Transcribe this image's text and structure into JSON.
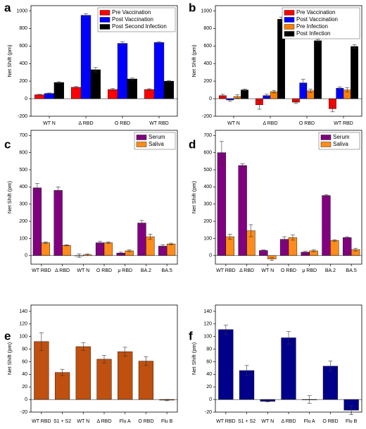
{
  "chart_data": [
    {
      "type": "bar",
      "panel_label": "a",
      "ylabel": "Net Shift (pm)",
      "legend": "upper right",
      "categories": [
        "WT N",
        "Δ RBD",
        "O RBD",
        "WT RBD"
      ],
      "series": [
        {
          "name": "Pre Vaccination",
          "color": "#ff0000",
          "values": [
            45,
            130,
            105,
            105
          ],
          "errors": [
            5,
            8,
            12,
            8
          ]
        },
        {
          "name": "Post Vaccination",
          "color": "#0000ff",
          "values": [
            60,
            950,
            630,
            640
          ],
          "errors": [
            5,
            20,
            20,
            10
          ]
        },
        {
          "name": "Post Second Infection",
          "color": "#000000",
          "values": [
            185,
            330,
            225,
            200
          ],
          "errors": [
            8,
            25,
            10,
            8
          ]
        }
      ],
      "ylim": [
        -200,
        1060
      ],
      "yticks": [
        -200,
        0,
        200,
        400,
        600,
        800,
        1000
      ]
    },
    {
      "type": "bar",
      "panel_label": "b",
      "ylabel": "Net Shift (pm)",
      "legend": "upper right",
      "categories": [
        "WT N",
        "Δ RBD",
        "O RBD",
        "WT RBD"
      ],
      "series": [
        {
          "name": "Pre Vaccination",
          "color": "#ff0000",
          "values": [
            35,
            -70,
            -40,
            -115
          ],
          "errors": [
            15,
            50,
            15,
            35
          ]
        },
        {
          "name": "Post Vaccination",
          "color": "#0000ff",
          "values": [
            -15,
            35,
            180,
            120
          ],
          "errors": [
            15,
            15,
            40,
            15
          ]
        },
        {
          "name": "Pre Infection",
          "color": "#ff8000",
          "values": [
            25,
            80,
            90,
            100
          ],
          "errors": [
            20,
            15,
            20,
            25
          ]
        },
        {
          "name": "Post Infection",
          "color": "#000000",
          "values": [
            100,
            905,
            660,
            595
          ],
          "errors": [
            10,
            25,
            15,
            20
          ]
        }
      ],
      "ylim": [
        -200,
        1060
      ],
      "yticks": [
        -200,
        0,
        200,
        400,
        600,
        800,
        1000
      ]
    },
    {
      "type": "bar",
      "panel_label": "c",
      "ylabel": "Net Shift (pm)",
      "legend": "upper right",
      "categories": [
        "WT RBD",
        "Δ RBD",
        "WT N",
        "O RBD",
        "μ RBD",
        "BA.2",
        "BA.5"
      ],
      "series": [
        {
          "name": "Serum",
          "color": "#800080",
          "values": [
            395,
            380,
            0,
            75,
            15,
            190,
            55
          ],
          "errors": [
            25,
            20,
            10,
            8,
            5,
            15,
            8
          ]
        },
        {
          "name": "Saliva",
          "color": "#ff8c1a",
          "values": [
            75,
            60,
            5,
            75,
            28,
            110,
            68
          ],
          "errors": [
            5,
            3,
            5,
            5,
            5,
            15,
            5
          ]
        }
      ],
      "ylim": [
        -50,
        730
      ],
      "yticks": [
        0,
        100,
        200,
        300,
        400,
        500,
        600,
        700
      ]
    },
    {
      "type": "bar",
      "panel_label": "d",
      "ylabel": "Net Shift (pm)",
      "legend": "upper right",
      "categories": [
        "WT RBD",
        "Δ RBD",
        "WT N",
        "O RBD",
        "μ RBD",
        "BA.2",
        "BA.5"
      ],
      "series": [
        {
          "name": "Serum",
          "color": "#800080",
          "values": [
            600,
            525,
            30,
            95,
            20,
            350,
            105
          ],
          "errors": [
            65,
            10,
            3,
            15,
            5,
            5,
            5
          ]
        },
        {
          "name": "Saliva",
          "color": "#ff8c1a",
          "values": [
            110,
            145,
            -20,
            105,
            28,
            88,
            35
          ],
          "errors": [
            15,
            35,
            8,
            15,
            5,
            5,
            8
          ]
        }
      ],
      "ylim": [
        -50,
        730
      ],
      "yticks": [
        0,
        100,
        200,
        300,
        400,
        500,
        600,
        700
      ]
    },
    {
      "type": "bar",
      "panel_label": "e",
      "ylabel": "Net Shift (pm)",
      "categories": [
        "WT RBD",
        "S1 + S2",
        "WT N",
        "Δ RBD",
        "Flu A",
        "O RBD",
        "Flu B"
      ],
      "color": "#c0500f",
      "values": [
        92,
        43,
        84,
        64,
        76,
        61,
        -1
      ],
      "errors": [
        14,
        5,
        6,
        6,
        7,
        7,
        1
      ],
      "ylim": [
        -20,
        150
      ],
      "yticks": [
        -20,
        0,
        20,
        40,
        60,
        80,
        100,
        120,
        140
      ]
    },
    {
      "type": "bar",
      "panel_label": "f",
      "ylabel": "Net Shift (pm)",
      "categories": [
        "WT RBD",
        "S1 + S2",
        "WT N",
        "Δ RBD",
        "Flu A",
        "O RBD",
        "Flu B"
      ],
      "color": "#00008b",
      "values": [
        111,
        46,
        -3,
        98,
        0,
        53,
        -17
      ],
      "errors": [
        7,
        8,
        1,
        10,
        6,
        8,
        7
      ],
      "ylim": [
        -20,
        150
      ],
      "yticks": [
        -20,
        0,
        20,
        40,
        60,
        80,
        100,
        120,
        140
      ]
    }
  ]
}
